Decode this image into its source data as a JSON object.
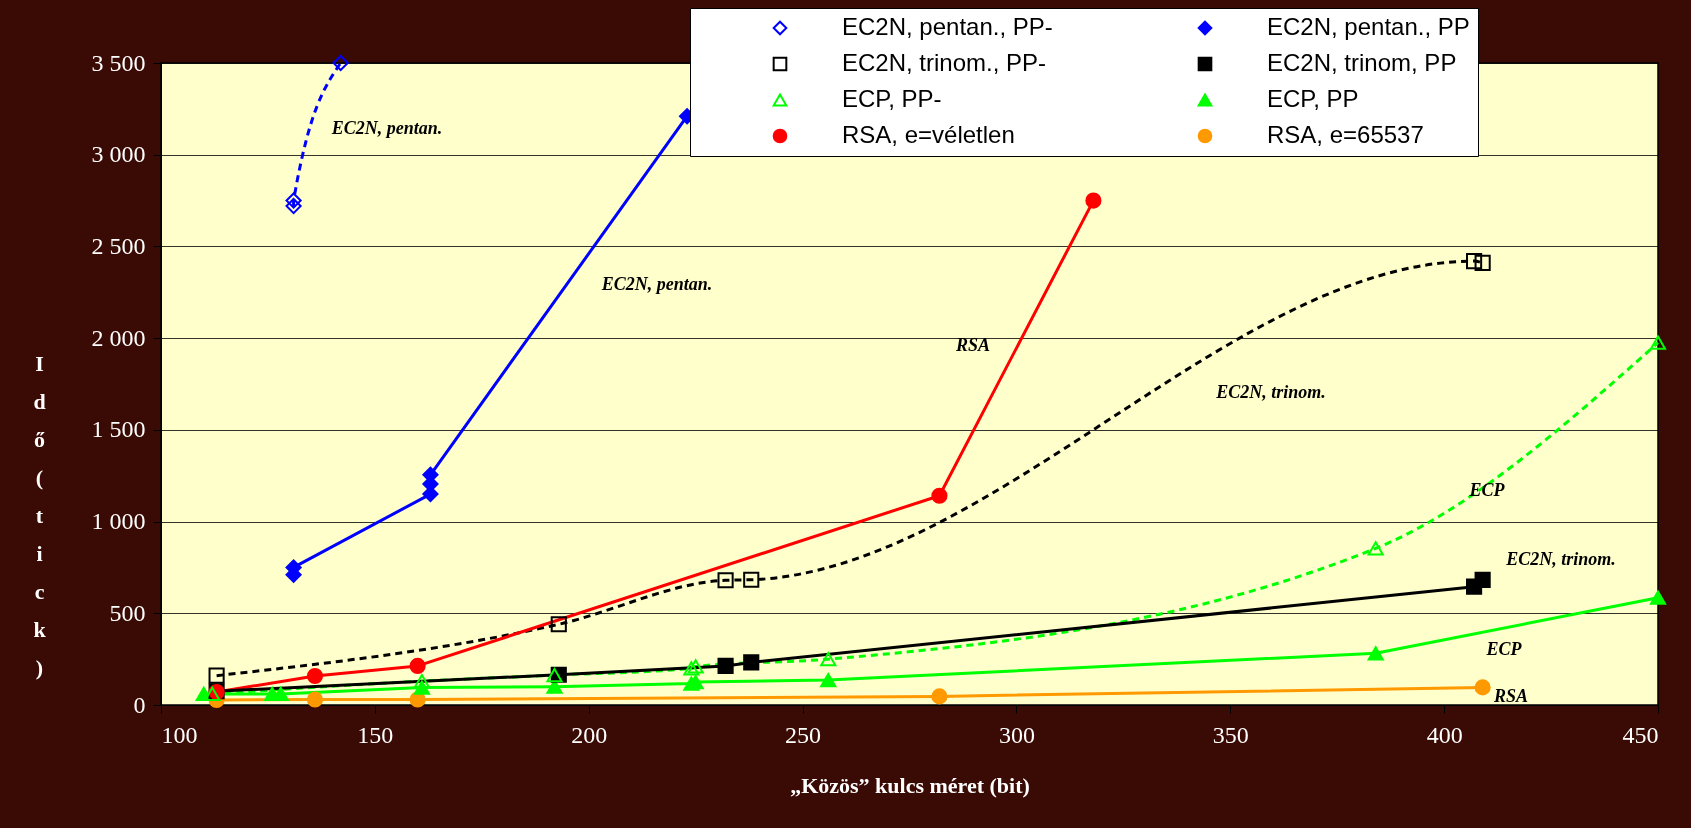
{
  "chart_data": {
    "type": "line",
    "xlabel": "„Közös” kulcs méret (bit)",
    "ylabel": "Idő (tick)",
    "xlim": [
      100,
      450
    ],
    "ylim": [
      0,
      3500
    ],
    "xticks": [
      100,
      150,
      200,
      250,
      300,
      350,
      400,
      450
    ],
    "yticks": [
      0,
      {
        "value": 500,
        "label": "500"
      },
      {
        "value": 1000,
        "label": "1 000"
      },
      {
        "value": 1500,
        "label": "1 500"
      },
      {
        "value": 2000,
        "label": "2 000"
      },
      {
        "value": 2500,
        "label": "2 500"
      },
      {
        "value": 3000,
        "label": "3 000"
      },
      {
        "value": 3500,
        "label": "3 500"
      }
    ],
    "grid": "y",
    "legend": "top right",
    "series": [
      {
        "name": "EC2N, pentan., PP-",
        "color": "#0000ff",
        "line_style": "dashed",
        "marker": "diamond",
        "x": [
          131,
          131,
          142
        ],
        "values": [
          2720,
          2750,
          3500
        ]
      },
      {
        "name": "EC2N, trinom., PP-",
        "color": "#000000",
        "line_style": "dashed",
        "marker": "square",
        "x": [
          113,
          193,
          232,
          238,
          407,
          409
        ],
        "values": [
          160,
          440,
          680,
          683,
          2420,
          2410
        ]
      },
      {
        "name": "ECP, PP-",
        "color": "#00ff00",
        "line_style": "dashed",
        "marker": "triangle",
        "x": [
          112,
          161,
          192,
          224,
          225,
          256,
          384,
          450
        ],
        "values": [
          60,
          130,
          163,
          200,
          210,
          250,
          854,
          1975
        ]
      },
      {
        "name": "RSA, e=véletlen",
        "color": "#ff0000",
        "line_style": "solid",
        "marker": "circle",
        "x": [
          113,
          136,
          160,
          282,
          318
        ],
        "values": [
          71,
          158,
          213,
          1141,
          2750
        ]
      },
      {
        "name": "EC2N, pentan., PP",
        "color": "#0000ff",
        "line_style": "solid",
        "marker": "diamond",
        "x": [
          131,
          131,
          163,
          163,
          163,
          223
        ],
        "values": [
          710,
          750,
          1150,
          1205,
          1255,
          3210
        ]
      },
      {
        "name": "EC2N, trinom, PP",
        "color": "#000000",
        "line_style": "solid",
        "marker": "square",
        "x": [
          113,
          193,
          232,
          238,
          407,
          409
        ],
        "values": [
          75,
          165,
          213,
          232,
          645,
          682
        ]
      },
      {
        "name": "ECP, PP",
        "color": "#00ff00",
        "line_style": "solid",
        "marker": "triangle",
        "x": [
          110,
          126,
          128,
          161,
          192,
          224,
          225,
          256,
          384,
          450
        ],
        "values": [
          60,
          60,
          60,
          95,
          100,
          117,
          125,
          136,
          282,
          585
        ]
      },
      {
        "name": "RSA, e=65537",
        "color": "#ff9900",
        "line_style": "solid",
        "marker": "circle",
        "x": [
          113,
          136,
          160,
          282,
          409
        ],
        "values": [
          27,
          30,
          30,
          47,
          96
        ]
      }
    ],
    "annotations": [
      "EC2N, pentan.",
      "EC2N, pentan.",
      "RSA",
      "EC2N, trinom.",
      "ECP",
      "EC2N, trinom.",
      "ECP",
      "RSA"
    ]
  }
}
